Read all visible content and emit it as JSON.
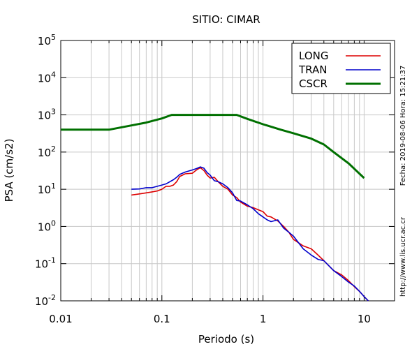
{
  "chart_data": {
    "type": "line",
    "title": "SITIO: CIMAR",
    "xlabel": "Periodo (s)",
    "ylabel": "PSA (cm/s2)",
    "x_scale": "log",
    "y_scale": "log",
    "xlim": [
      0.01,
      20
    ],
    "ylim": [
      0.01,
      100000
    ],
    "grid": true,
    "legend_position": "top-right",
    "x_tick_labels": [
      "0.01",
      "0.1",
      "1",
      "10"
    ],
    "x_tick_values": [
      0.01,
      0.1,
      1,
      10
    ],
    "y_tick_values": [
      0.01,
      0.1,
      1,
      10,
      100,
      1000,
      10000,
      100000
    ],
    "y_tick_labels": [
      {
        "base": "10",
        "exp": "-2"
      },
      {
        "base": "10",
        "exp": "-1"
      },
      {
        "base": "10",
        "exp": "0"
      },
      {
        "base": "10",
        "exp": "1"
      },
      {
        "base": "10",
        "exp": "2"
      },
      {
        "base": "10",
        "exp": "3"
      },
      {
        "base": "10",
        "exp": "4"
      },
      {
        "base": "10",
        "exp": "5"
      }
    ],
    "series": [
      {
        "name": "LONG",
        "color": "#dd0000",
        "x": [
          0.05,
          0.06,
          0.07,
          0.08,
          0.09,
          0.1,
          0.11,
          0.12,
          0.13,
          0.14,
          0.15,
          0.17,
          0.2,
          0.22,
          0.24,
          0.26,
          0.28,
          0.3,
          0.33,
          0.36,
          0.4,
          0.45,
          0.5,
          0.55,
          0.6,
          0.7,
          0.8,
          0.9,
          1.0,
          1.1,
          1.2,
          1.4,
          1.6,
          1.8,
          2.0,
          2.5,
          3.0,
          3.5,
          4.0,
          5.0,
          6.0,
          7.0,
          8.0,
          9.0,
          10.0,
          11.0
        ],
        "y": [
          7,
          7.5,
          8,
          8.5,
          9,
          10,
          12,
          12,
          13,
          16,
          22,
          26,
          27,
          33,
          38,
          32,
          24,
          20,
          21,
          16,
          12,
          10,
          7,
          6,
          4.5,
          3.5,
          3.2,
          2.8,
          2.5,
          1.9,
          1.8,
          1.4,
          1.0,
          0.7,
          0.45,
          0.3,
          0.25,
          0.17,
          0.12,
          0.065,
          0.05,
          0.035,
          0.024,
          0.018,
          0.013,
          0.01
        ]
      },
      {
        "name": "TRAN",
        "color": "#0000cc",
        "x": [
          0.05,
          0.06,
          0.07,
          0.08,
          0.09,
          0.1,
          0.11,
          0.12,
          0.13,
          0.14,
          0.15,
          0.17,
          0.2,
          0.22,
          0.24,
          0.26,
          0.28,
          0.3,
          0.33,
          0.36,
          0.4,
          0.45,
          0.5,
          0.55,
          0.6,
          0.7,
          0.8,
          0.9,
          1.0,
          1.1,
          1.2,
          1.4,
          1.6,
          1.8,
          2.0,
          2.5,
          3.0,
          3.5,
          4.0,
          5.0,
          6.0,
          7.0,
          8.0,
          9.0,
          10.0,
          11.0
        ],
        "y": [
          10,
          10.2,
          11,
          11,
          12,
          13,
          14,
          16,
          18,
          21,
          25,
          29,
          33,
          36,
          40,
          37,
          28,
          24,
          17,
          16,
          14,
          11,
          8,
          5,
          4.8,
          3.8,
          3.0,
          2.2,
          1.8,
          1.5,
          1.35,
          1.5,
          0.9,
          0.7,
          0.55,
          0.25,
          0.17,
          0.13,
          0.12,
          0.065,
          0.045,
          0.032,
          0.025,
          0.018,
          0.013,
          0.01
        ]
      },
      {
        "name": "CSCR",
        "color": "#007000",
        "x": [
          0.01,
          0.03,
          0.05,
          0.07,
          0.1,
          0.125,
          0.2,
          0.3,
          0.55,
          0.7,
          1.0,
          1.5,
          2.0,
          3.0,
          4.0,
          5.0,
          7.0,
          10.0
        ],
        "y": [
          400,
          400,
          520,
          620,
          800,
          1000,
          1000,
          1000,
          1000,
          780,
          560,
          400,
          320,
          230,
          160,
          100,
          50,
          20
        ]
      }
    ]
  },
  "side_notes": {
    "date_time": "Fecha: 2019-08-06  Hora: 15:21:37",
    "url": "http://www.lis.ucr.ac.cr"
  }
}
